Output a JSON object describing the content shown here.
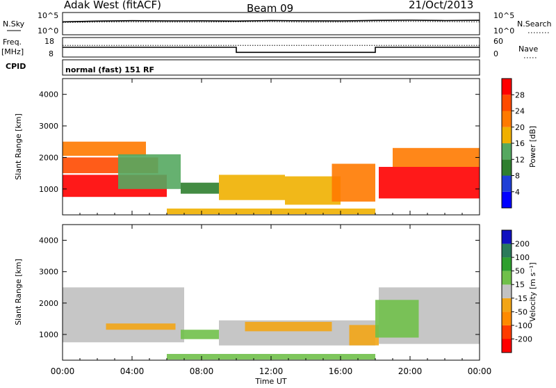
{
  "header": {
    "station": "Adak West (fitACF)",
    "beam": "Beam 09",
    "date": "21/Oct/2013"
  },
  "status_panels": {
    "nsky_label": "N.Sky",
    "nsky_ticks": [
      "10^5",
      "10^0"
    ],
    "nsearch_label": "N.Search",
    "nsearch_ticks": [
      "10^5",
      "10^0"
    ],
    "freq_label_top": "Freq.",
    "freq_label_unit": "[MHz]",
    "freq_ticks": [
      "18",
      "8"
    ],
    "nave_label": "Nave",
    "nave_ticks": [
      "60",
      "0"
    ],
    "cpid_label": "CPID",
    "cpid_text": "normal (fast) 151 RF"
  },
  "colorbars": {
    "power": {
      "title": "Power [dB]",
      "labels": [
        "28",
        "24",
        "20",
        "16",
        "12",
        "8",
        "4"
      ],
      "colors": [
        "#0000ff",
        "#1f3fd6",
        "#2f7f2f",
        "#55a860",
        "#f0b000",
        "#ff7a00",
        "#ff4a00",
        "#ff0000"
      ]
    },
    "velocity": {
      "title": "Velocity [m s⁻¹]",
      "labels": [
        "200",
        "100",
        "50",
        "15",
        "-15",
        "-50",
        "-100",
        "-200"
      ],
      "colors": [
        "#ff0000",
        "#ff3b00",
        "#ff8a00",
        "#f2a516",
        "#c2c2c2",
        "#70c04a",
        "#2e9f2e",
        "#2a7a5a",
        "#1010c0"
      ]
    },
    "ground_scatter_color": "#c0c0c0"
  },
  "chart_data": [
    {
      "type": "line",
      "title": "",
      "ylabel": "N.Sky",
      "ylabel_right": "N.Search",
      "yscale": "log",
      "ylim": [
        1,
        100000
      ],
      "x": [
        0,
        2,
        4,
        6,
        8,
        10,
        12,
        14,
        16,
        18,
        20,
        22,
        24
      ],
      "series": [
        {
          "values": [
            800,
            1200,
            1500,
            1300,
            1400,
            1200,
            1600,
            1400,
            1300,
            1700,
            1900,
            1600,
            1800
          ]
        },
        {
          "values": [
            600,
            700,
            800,
            700,
            700,
            800,
            900,
            700,
            700,
            900,
            1000,
            900,
            800
          ]
        }
      ]
    },
    {
      "type": "line",
      "title": "",
      "ylabel": "Freq. [MHz]",
      "ylim": [
        8,
        18
      ],
      "ylabel_right": "Nave",
      "ylim_right": [
        0,
        60
      ],
      "x": [
        0,
        10,
        10,
        18,
        18,
        24
      ],
      "series": [
        {
          "values": [
            13,
            13,
            10.4,
            10.4,
            13,
            13
          ]
        },
        {
          "values": [
            14,
            14,
            14,
            14,
            14,
            14
          ]
        }
      ]
    },
    {
      "type": "heatmap",
      "title": "",
      "xlabel": "",
      "ylabel": "Slant Range [km]",
      "xlim": [
        0,
        24
      ],
      "ylim": [
        180,
        4500
      ],
      "yticks": [
        1000,
        2000,
        3000,
        4000
      ],
      "colorbar": "Power [dB]",
      "regions": [
        {
          "t0": 0.0,
          "t1": 6.0,
          "r0": 750,
          "r1": 1450,
          "value": 28
        },
        {
          "t0": 0.0,
          "t1": 5.5,
          "r0": 1500,
          "r1": 2000,
          "value": 24
        },
        {
          "t0": 0.0,
          "t1": 4.8,
          "r0": 2050,
          "r1": 2500,
          "value": 20
        },
        {
          "t0": 3.2,
          "t1": 6.8,
          "r0": 1000,
          "r1": 2100,
          "value": 14
        },
        {
          "t0": 6.8,
          "t1": 9.0,
          "r0": 850,
          "r1": 1200,
          "value": 10
        },
        {
          "t0": 9.0,
          "t1": 12.8,
          "r0": 650,
          "r1": 1450,
          "value": 18
        },
        {
          "t0": 12.8,
          "t1": 16.0,
          "r0": 500,
          "r1": 1400,
          "value": 16
        },
        {
          "t0": 15.5,
          "t1": 18.0,
          "r0": 600,
          "r1": 1800,
          "value": 22
        },
        {
          "t0": 18.2,
          "t1": 24.0,
          "r0": 700,
          "r1": 1700,
          "value": 28
        },
        {
          "t0": 19.0,
          "t1": 24.0,
          "r0": 1700,
          "r1": 2300,
          "value": 22
        },
        {
          "t0": 6.0,
          "t1": 18.0,
          "r0": 200,
          "r1": 380,
          "value": 16
        }
      ]
    },
    {
      "type": "heatmap",
      "title": "",
      "xlabel": "Time UT",
      "ylabel": "Slant Range [km]",
      "xlim": [
        0,
        24
      ],
      "ylim": [
        180,
        4500
      ],
      "xticks": [
        "00:00",
        "04:00",
        "08:00",
        "12:00",
        "16:00",
        "20:00",
        "00:00"
      ],
      "yticks": [
        1000,
        2000,
        3000,
        4000
      ],
      "colorbar": "Velocity [m s⁻¹]",
      "regions": [
        {
          "t0": 0.0,
          "t1": 7.0,
          "r0": 750,
          "r1": 2500,
          "value": 0,
          "ground_scatter": true
        },
        {
          "t0": 2.5,
          "t1": 6.5,
          "r0": 1150,
          "r1": 1350,
          "value": -40
        },
        {
          "t0": 6.8,
          "t1": 9.0,
          "r0": 850,
          "r1": 1150,
          "value": 30
        },
        {
          "t0": 9.0,
          "t1": 18.0,
          "r0": 650,
          "r1": 1450,
          "value": 0,
          "ground_scatter": true
        },
        {
          "t0": 10.5,
          "t1": 15.5,
          "r0": 1100,
          "r1": 1400,
          "value": -40
        },
        {
          "t0": 16.5,
          "t1": 18.2,
          "r0": 650,
          "r1": 1300,
          "value": -30
        },
        {
          "t0": 18.2,
          "t1": 24.0,
          "r0": 700,
          "r1": 2500,
          "value": 0,
          "ground_scatter": true
        },
        {
          "t0": 18.0,
          "t1": 20.5,
          "r0": 900,
          "r1": 2100,
          "value": 30
        },
        {
          "t0": 6.0,
          "t1": 18.0,
          "r0": 200,
          "r1": 380,
          "value": 30
        }
      ]
    }
  ]
}
